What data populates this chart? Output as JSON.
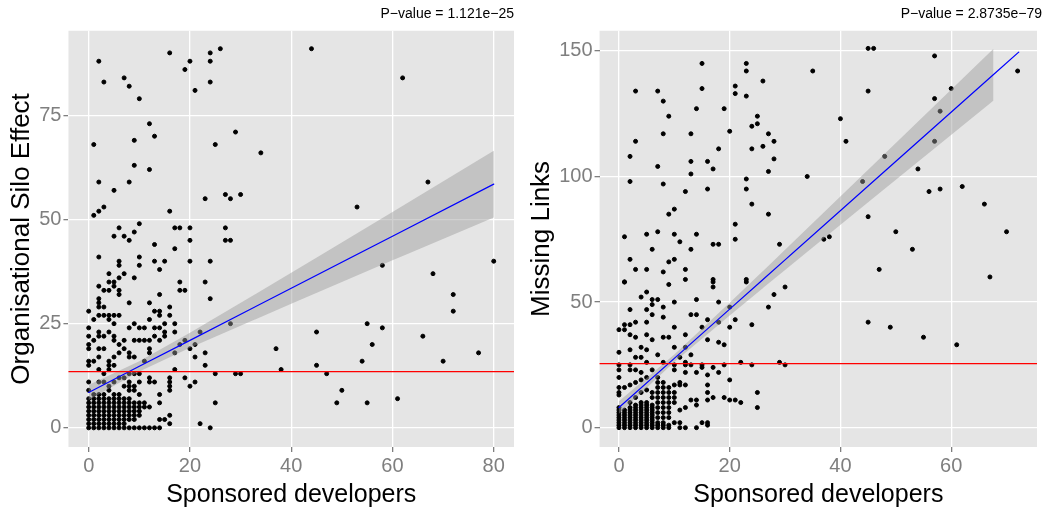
{
  "chart_data": [
    {
      "type": "scatter",
      "title": "P−value = 1.121e−25",
      "xlabel": "Sponsored developers",
      "ylabel": "Organisational Silo Effect",
      "xlim": [
        -4,
        84
      ],
      "ylim": [
        -4.6,
        95.3
      ],
      "xticks": [
        0,
        20,
        40,
        60,
        80
      ],
      "yticks": [
        0,
        25,
        50,
        75
      ],
      "grid": true,
      "marker": "circle",
      "ref_lines": [
        {
          "axis": "y",
          "value": 13.5,
          "color": "#ff0000"
        }
      ],
      "series": [
        {
          "color": "#000000",
          "x": [
            2,
            3,
            7,
            8,
            10,
            16,
            19,
            20,
            21,
            24,
            24,
            24,
            26,
            44,
            62,
            1,
            12,
            13,
            9,
            9,
            12,
            25,
            29,
            34,
            2,
            8,
            5,
            23,
            27,
            28,
            30,
            67,
            53,
            1,
            2,
            3,
            16,
            6,
            5,
            7,
            8,
            9,
            10,
            17,
            18,
            20,
            20,
            13,
            17,
            27,
            27,
            28,
            80,
            58,
            68,
            2,
            6,
            6,
            10,
            10,
            13,
            15,
            20,
            24,
            14,
            72,
            72,
            28,
            45,
            55,
            58,
            66,
            56,
            37,
            77,
            70,
            54,
            45,
            38,
            47,
            25,
            29,
            30,
            50,
            49,
            55,
            61,
            25,
            22,
            24,
            19,
            20,
            21,
            23,
            23,
            21,
            21,
            20,
            19,
            18,
            22,
            24,
            23,
            18,
            18,
            19,
            14,
            12,
            8,
            16,
            16,
            17,
            17,
            15,
            15,
            15,
            17,
            17,
            16,
            16,
            16,
            16,
            14,
            14,
            14,
            15,
            16,
            16,
            11,
            12,
            13,
            14,
            12,
            11,
            10,
            12,
            13,
            12,
            11,
            12,
            12,
            14,
            13,
            14,
            13,
            13,
            14,
            14,
            12,
            11,
            10,
            8,
            9,
            11,
            10,
            9,
            12,
            9,
            7,
            6,
            5,
            5,
            6,
            6,
            4,
            4,
            3,
            2,
            4,
            2,
            2,
            3,
            2,
            0,
            1,
            2,
            3,
            4,
            5,
            6,
            4,
            5,
            0,
            2,
            2,
            3,
            4,
            5,
            0,
            1,
            0,
            0,
            2,
            3,
            5,
            6,
            7,
            7,
            5,
            6,
            8,
            8,
            9,
            0,
            0,
            1,
            2,
            4,
            4,
            5,
            4,
            2,
            3,
            0,
            0,
            0,
            0,
            0,
            0,
            0,
            0,
            0,
            0,
            1,
            1,
            1,
            1,
            1,
            1,
            1,
            1,
            1,
            2,
            2,
            2,
            2,
            2,
            2,
            2,
            2,
            2,
            2,
            3,
            3,
            3,
            3,
            3,
            3,
            3,
            3,
            3,
            3,
            4,
            4,
            4,
            4,
            4,
            4,
            4,
            4,
            4,
            4,
            5,
            5,
            5,
            5,
            5,
            5,
            5,
            5,
            5,
            5,
            6,
            6,
            6,
            6,
            6,
            6,
            6,
            6,
            6,
            6,
            7,
            7,
            7,
            7,
            7,
            7,
            7,
            7,
            7,
            7,
            8,
            8,
            8,
            8,
            8,
            8,
            8,
            8,
            8,
            8,
            8,
            9,
            9,
            9,
            9,
            9,
            9,
            9,
            9,
            9,
            10,
            10,
            10,
            10,
            10,
            10,
            10,
            11
          ],
          "values": [
            88,
            83,
            84,
            82,
            79,
            90,
            86,
            88,
            81,
            90,
            88,
            83,
            91,
            91,
            84,
            68,
            73,
            70,
            69,
            63,
            62,
            68,
            71,
            66,
            59,
            59,
            57,
            55,
            56,
            55,
            56,
            59,
            53,
            51,
            52,
            53,
            52,
            48,
            46,
            46,
            45,
            47,
            49,
            48,
            48,
            48,
            45,
            44,
            43,
            48,
            45,
            45,
            40,
            39,
            37,
            41,
            40,
            39,
            41,
            39,
            40,
            40,
            40,
            40,
            38,
            32,
            28,
            25,
            23,
            25,
            24,
            22,
            20,
            19,
            18,
            16,
            16,
            15,
            14,
            13,
            13,
            13,
            13,
            9,
            6,
            6,
            7,
            6,
            1,
            0,
            12,
            10,
            11,
            15,
            18,
            17,
            20,
            19,
            21,
            20,
            23,
            31,
            35,
            35,
            33,
            33,
            32,
            30,
            30,
            29,
            27,
            25,
            23,
            25,
            23,
            22,
            18,
            14,
            12,
            11,
            10,
            9,
            8,
            6,
            2,
            2,
            3,
            1,
            0,
            0,
            0,
            0,
            5,
            6,
            6,
            12,
            11,
            11,
            16,
            19,
            18,
            21,
            22,
            24,
            24,
            28,
            28,
            27,
            26,
            24,
            24,
            24,
            25,
            21,
            21,
            21,
            21,
            36,
            37,
            36,
            35,
            34,
            33,
            32,
            37,
            35,
            33,
            34,
            33,
            31,
            30,
            29,
            29,
            28,
            26,
            27,
            27,
            27,
            27,
            27,
            26,
            25,
            24,
            23,
            22,
            22,
            23,
            22,
            22,
            21,
            20,
            19,
            19,
            19,
            21,
            20,
            21,
            19,
            17,
            18,
            18,
            17,
            17,
            16,
            15,
            16,
            17,
            16,
            15,
            15,
            14,
            14,
            13,
            0,
            1,
            2,
            3,
            4,
            5,
            6,
            7,
            9,
            11,
            0,
            1,
            2,
            3,
            4,
            5,
            6,
            7,
            8,
            0,
            1,
            2,
            3,
            4,
            5,
            6,
            7,
            8,
            11,
            0,
            1,
            2,
            3,
            4,
            5,
            6,
            7,
            8,
            11,
            0,
            1,
            2,
            3,
            4,
            5,
            6,
            7,
            9,
            10,
            0,
            1,
            2,
            3,
            4,
            5,
            6,
            7,
            8,
            11,
            0,
            1,
            2,
            3,
            4,
            5,
            6,
            7,
            8,
            12,
            0,
            1,
            2,
            3,
            4,
            5,
            6,
            7,
            10,
            12,
            0,
            2,
            3,
            4,
            5,
            6,
            7,
            9,
            10,
            11,
            13,
            0,
            2,
            3,
            4,
            5,
            6,
            9,
            10,
            13,
            0,
            3,
            4,
            5,
            8,
            11,
            13,
            5
          ]
        },
        {
          "type": "line",
          "marker": "none",
          "color": "#0000ff",
          "x": [
            0,
            10,
            20,
            40,
            60,
            80
          ],
          "values": [
            8.5,
            14.8,
            21,
            33.5,
            46,
            58.5
          ],
          "lower": [
            6.7,
            13.5,
            19.2,
            29.8,
            40.2,
            50.5
          ],
          "upper": [
            10.3,
            16,
            22.8,
            37.2,
            51.8,
            66.5
          ]
        }
      ]
    },
    {
      "type": "scatter",
      "title": "P−value = 2.8735e−79",
      "xlabel": "Sponsored developers",
      "ylabel": "Missing Links",
      "xlim": [
        -3.5,
        75.5
      ],
      "ylim": [
        -7.7,
        158
      ],
      "xticks": [
        0,
        20,
        40,
        60
      ],
      "yticks": [
        0,
        50,
        100,
        150
      ],
      "grid": true,
      "marker": "circle",
      "ref_lines": [
        {
          "axis": "y",
          "value": 25.5,
          "color": "#ff0000"
        }
      ],
      "series": [
        {
          "color": "#000000",
          "x": [
            45,
            46,
            57,
            72,
            35,
            15,
            23,
            23,
            3,
            7,
            8,
            9,
            14,
            19,
            15,
            21,
            21,
            23,
            26,
            45,
            60,
            57,
            58,
            25,
            25,
            24,
            20,
            13,
            8,
            27,
            28,
            3,
            40,
            41,
            57,
            26,
            24,
            18,
            2,
            28,
            48,
            7,
            16,
            13,
            17,
            54,
            13,
            27,
            34,
            23,
            2,
            8,
            44,
            16,
            23,
            58,
            62,
            56,
            12,
            24,
            66,
            9,
            10,
            27,
            45,
            21,
            1,
            5,
            7,
            10,
            14,
            11,
            6,
            13,
            17,
            18,
            21,
            29,
            37,
            38,
            50,
            53,
            70,
            2,
            3,
            5,
            8,
            9,
            10,
            12,
            47,
            67,
            1,
            9,
            12,
            17,
            17,
            17,
            23,
            23,
            30,
            45,
            49,
            55,
            61,
            28,
            27,
            24,
            21,
            20,
            20,
            18,
            18,
            16,
            19,
            16,
            18,
            15,
            14,
            14,
            13,
            12,
            12,
            13,
            11,
            10,
            10,
            10,
            9,
            8,
            8,
            8,
            7,
            6,
            6,
            5,
            4,
            5,
            6,
            2,
            1,
            3,
            2,
            1,
            0,
            1,
            5,
            6,
            3,
            2,
            5,
            0,
            2,
            4,
            5,
            7,
            4,
            3,
            8,
            0,
            0,
            2,
            2,
            3,
            4,
            5,
            6,
            10,
            10,
            11,
            12,
            12,
            12,
            13,
            15,
            14,
            15,
            16,
            17,
            18,
            19,
            22,
            24,
            29,
            30,
            20,
            19,
            20,
            21,
            22,
            25,
            25,
            17,
            16,
            16,
            16,
            14,
            14,
            13,
            12,
            11,
            11,
            12,
            10,
            10,
            11,
            11,
            12,
            14,
            15,
            16,
            16,
            0,
            1,
            2,
            3,
            4,
            5,
            0,
            0,
            0,
            0,
            0,
            0,
            0,
            0,
            0,
            0,
            0,
            0,
            1,
            1,
            1,
            1,
            1,
            1,
            1,
            1,
            2,
            2,
            2,
            2,
            2,
            2,
            2,
            2,
            2,
            2,
            3,
            3,
            3,
            3,
            3,
            3,
            3,
            3,
            3,
            3,
            3,
            4,
            4,
            4,
            4,
            4,
            4,
            4,
            4,
            4,
            4,
            4,
            4,
            5,
            5,
            5,
            5,
            5,
            5,
            5,
            5,
            5,
            5,
            5,
            5,
            6,
            6,
            6,
            6,
            6,
            6,
            6,
            6,
            6,
            6,
            6,
            6,
            7,
            7,
            7,
            7,
            7,
            7,
            7,
            7,
            7,
            7,
            7,
            7,
            8,
            8,
            8,
            8,
            8,
            8,
            8,
            8,
            8,
            8,
            8,
            9,
            9,
            9,
            9,
            9,
            9,
            9,
            9,
            9,
            10,
            10,
            10
          ],
          "values": [
            151,
            151,
            148,
            142,
            142,
            145,
            145,
            142,
            134,
            134,
            130,
            124,
            127,
            127,
            135,
            136,
            133,
            132,
            138,
            134,
            135,
            131,
            126,
            124,
            121,
            120,
            118,
            117,
            117,
            117,
            114,
            114,
            123,
            114,
            114,
            112,
            111,
            111,
            108,
            107,
            108,
            104,
            106,
            106,
            103,
            103,
            101,
            102,
            100,
            99,
            98,
            97,
            98,
            95,
            95,
            95,
            96,
            94,
            94,
            89,
            89,
            85,
            87,
            85,
            84,
            81,
            76,
            77,
            78,
            77,
            77,
            74,
            71,
            71,
            73,
            73,
            75,
            73,
            75,
            76,
            78,
            71,
            78,
            67,
            63,
            63,
            62,
            66,
            67,
            63,
            63,
            60,
            58,
            57,
            59,
            59,
            58,
            56,
            59,
            58,
            56,
            42,
            40,
            36,
            33,
            53,
            48,
            41,
            43,
            40,
            48,
            50,
            42,
            43,
            33,
            35,
            34,
            40,
            45,
            51,
            45,
            37,
            32,
            29,
            28,
            32,
            40,
            50,
            36,
            36,
            44,
            48,
            51,
            51,
            49,
            47,
            52,
            54,
            45,
            47,
            58,
            42,
            41,
            41,
            39,
            39,
            42,
            35,
            36,
            37,
            37,
            30,
            31,
            32,
            31,
            29,
            28,
            28,
            26,
            25,
            23,
            25,
            23,
            23,
            22,
            26,
            23,
            25,
            23,
            18,
            26,
            25,
            22,
            25,
            25,
            22,
            24,
            21,
            24,
            22,
            25,
            26,
            25,
            26,
            25,
            19,
            12,
            11,
            11,
            10,
            14,
            8,
            12,
            11,
            14,
            17,
            11,
            9,
            11,
            8,
            7,
            17,
            17,
            17,
            2,
            2,
            0,
            0,
            0,
            2,
            2,
            1,
            16,
            16,
            17,
            18,
            19,
            15,
            0,
            1,
            2,
            3,
            4,
            5,
            6,
            7,
            8,
            13,
            14,
            20,
            0,
            1,
            2,
            3,
            4,
            5,
            6,
            7,
            0,
            1,
            2,
            3,
            4,
            5,
            6,
            7,
            8,
            10,
            0,
            1,
            2,
            3,
            4,
            5,
            6,
            7,
            8,
            9,
            12,
            0,
            1,
            2,
            3,
            4,
            5,
            6,
            7,
            8,
            9,
            10,
            14,
            0,
            1,
            2,
            3,
            4,
            5,
            6,
            7,
            8,
            9,
            10,
            20,
            0,
            1,
            2,
            3,
            4,
            5,
            6,
            7,
            8,
            9,
            12,
            14,
            0,
            1,
            2,
            4,
            6,
            8,
            10,
            12,
            14,
            16,
            18,
            20,
            0,
            1,
            2,
            4,
            6,
            8,
            10,
            12,
            14,
            16,
            18,
            0,
            1,
            4,
            6,
            8,
            10,
            12,
            14,
            16,
            10,
            12,
            14
          ]
        },
        {
          "type": "line",
          "marker": "none",
          "color": "#0000ff",
          "x": [
            0,
            10,
            20,
            30,
            45,
            67.6,
            72.2
          ],
          "values": [
            8,
            27.6,
            47.2,
            66.8,
            96.2,
            140.5,
            149.5
          ],
          "lower": [
            5.5,
            26.1,
            44.7,
            62.8,
            89.7,
            130.2,
            null
          ],
          "upper": [
            10.5,
            29.1,
            49.7,
            70.8,
            102.7,
            150.8,
            null
          ]
        }
      ]
    }
  ]
}
